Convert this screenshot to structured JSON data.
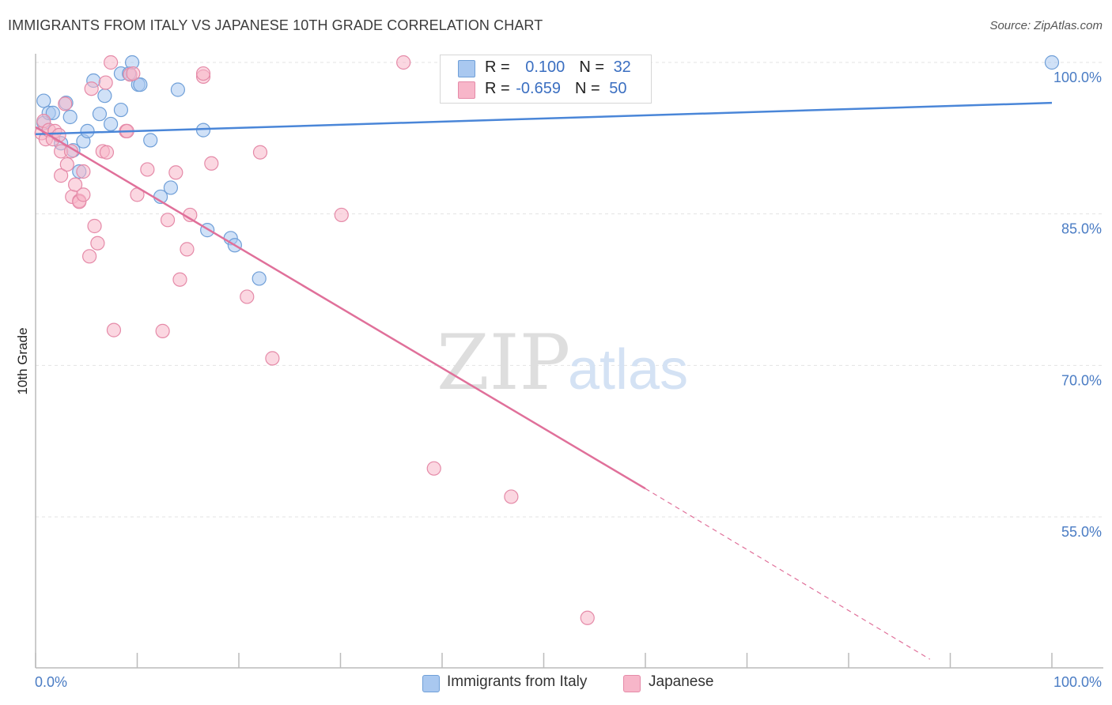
{
  "header": {
    "title": "IMMIGRANTS FROM ITALY VS JAPANESE 10TH GRADE CORRELATION CHART",
    "source": "Source: ZipAtlas.com"
  },
  "watermark": {
    "zip": "ZIP",
    "atlas": "atlas"
  },
  "legend": {
    "rows": [
      {
        "r_label": "R = ",
        "r_value": "0.100",
        "n_label": "N = ",
        "n_value": "32",
        "color": "#a9c8f0"
      },
      {
        "r_label": "R = ",
        "r_value": "-0.659",
        "n_label": "N = ",
        "n_value": "50",
        "color": "#f7b6c9"
      }
    ]
  },
  "bottom_legend": {
    "items": [
      {
        "label": "Immigrants from Italy",
        "color": "#a9c8f0"
      },
      {
        "label": "Japanese",
        "color": "#f7b6c9"
      }
    ]
  },
  "chart_data": {
    "type": "scatter",
    "title": "IMMIGRANTS FROM ITALY VS JAPANESE 10TH GRADE CORRELATION CHART",
    "xlabel": "",
    "ylabel": "10th Grade",
    "xlim": [
      0,
      100
    ],
    "ylim": [
      40,
      101
    ],
    "x_tick_labels": [
      "0.0%",
      "100.0%"
    ],
    "y_ticks": [
      55,
      70,
      85,
      100
    ],
    "y_tick_labels": [
      "55.0%",
      "70.0%",
      "85.0%",
      "100.0%"
    ],
    "grid": true,
    "colors": {
      "italy": "#4a86d8",
      "japanese": "#e0709a",
      "italy_fill": "#a9c8f0",
      "japanese_fill": "#f7b6c9"
    },
    "series": [
      {
        "name": "Immigrants from Italy",
        "points": [
          [
            0.8,
            96.2
          ],
          [
            0.8,
            94.0
          ],
          [
            1.3,
            95.0
          ],
          [
            1.7,
            95.0
          ],
          [
            2.5,
            92.0
          ],
          [
            3.0,
            96.0
          ],
          [
            3.4,
            94.6
          ],
          [
            3.7,
            91.3
          ],
          [
            4.3,
            89.2
          ],
          [
            4.7,
            92.2
          ],
          [
            5.1,
            93.2
          ],
          [
            5.7,
            98.2
          ],
          [
            6.3,
            94.9
          ],
          [
            6.8,
            96.7
          ],
          [
            7.4,
            93.9
          ],
          [
            8.4,
            95.3
          ],
          [
            8.4,
            98.9
          ],
          [
            9.2,
            98.9
          ],
          [
            9.5,
            100.0
          ],
          [
            10.1,
            97.8
          ],
          [
            10.3,
            97.8
          ],
          [
            11.3,
            92.3
          ],
          [
            12.3,
            86.7
          ],
          [
            13.3,
            87.6
          ],
          [
            14.0,
            97.3
          ],
          [
            16.5,
            93.3
          ],
          [
            16.9,
            83.4
          ],
          [
            19.2,
            82.6
          ],
          [
            19.6,
            81.9
          ],
          [
            22.0,
            78.6
          ],
          [
            44.4,
            100.0
          ],
          [
            100.0,
            100.0
          ]
        ],
        "trend": {
          "x0": 0,
          "y0": 92.9,
          "x1": 100,
          "y1": 96.0
        }
      },
      {
        "name": "Japanese",
        "points": [
          [
            0.6,
            93.0
          ],
          [
            0.8,
            94.2
          ],
          [
            1.0,
            92.4
          ],
          [
            1.3,
            93.3
          ],
          [
            1.7,
            92.4
          ],
          [
            1.9,
            93.2
          ],
          [
            2.3,
            92.8
          ],
          [
            2.5,
            91.2
          ],
          [
            2.5,
            88.8
          ],
          [
            2.9,
            95.9
          ],
          [
            3.1,
            89.9
          ],
          [
            3.5,
            91.2
          ],
          [
            3.6,
            86.7
          ],
          [
            3.9,
            87.9
          ],
          [
            4.3,
            86.3
          ],
          [
            4.3,
            86.2
          ],
          [
            4.7,
            89.2
          ],
          [
            4.7,
            86.9
          ],
          [
            5.3,
            80.8
          ],
          [
            5.5,
            97.4
          ],
          [
            5.8,
            83.8
          ],
          [
            6.1,
            82.1
          ],
          [
            6.6,
            91.2
          ],
          [
            6.9,
            98.0
          ],
          [
            7.0,
            91.1
          ],
          [
            7.7,
            73.5
          ],
          [
            7.4,
            100.0
          ],
          [
            8.9,
            93.2
          ],
          [
            9.0,
            93.2
          ],
          [
            9.3,
            98.8
          ],
          [
            9.6,
            98.9
          ],
          [
            10.0,
            86.9
          ],
          [
            11.0,
            89.4
          ],
          [
            12.5,
            73.4
          ],
          [
            13.0,
            84.4
          ],
          [
            13.8,
            89.1
          ],
          [
            14.2,
            78.5
          ],
          [
            14.9,
            81.5
          ],
          [
            15.2,
            84.9
          ],
          [
            16.5,
            98.6
          ],
          [
            16.5,
            98.9
          ],
          [
            17.3,
            90.0
          ],
          [
            20.8,
            76.8
          ],
          [
            22.1,
            91.1
          ],
          [
            23.3,
            70.7
          ],
          [
            30.1,
            84.9
          ],
          [
            36.2,
            100.0
          ],
          [
            39.2,
            59.8
          ],
          [
            46.8,
            57.0
          ],
          [
            54.3,
            45.0
          ]
        ],
        "trend": {
          "x0": 0,
          "y0": 93.6,
          "x1": 60,
          "y1": 57.8
        },
        "trend_dashed": {
          "x0": 60,
          "y0": 57.8,
          "x1": 88,
          "y1": 40.9
        }
      }
    ]
  }
}
